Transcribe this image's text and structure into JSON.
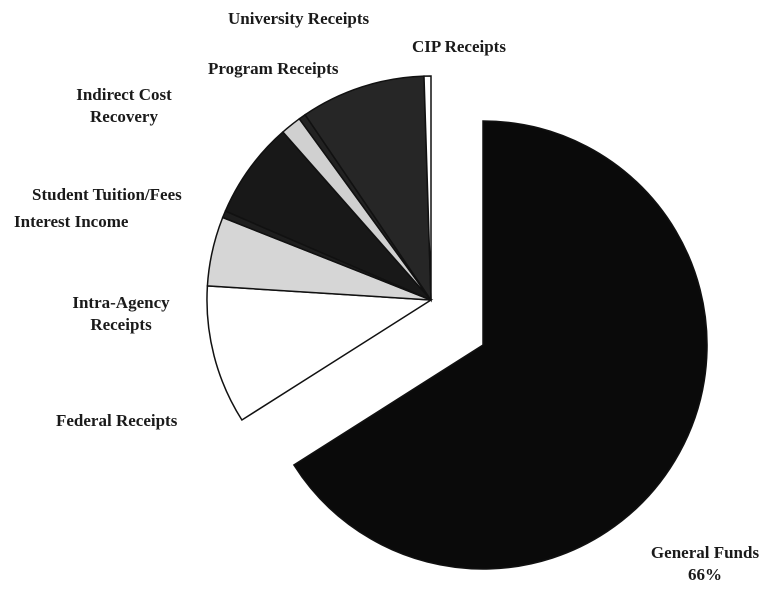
{
  "chart_data": {
    "type": "pie",
    "title": "",
    "slices": [
      {
        "label": "General Funds",
        "percent_label": "66%",
        "value": 66,
        "fill": "#0a0a0a"
      },
      {
        "label": "Federal Receipts",
        "value": 10,
        "fill": "#ffffff"
      },
      {
        "label": "Intra-Agency Receipts",
        "value": 5,
        "fill": "#d6d6d6"
      },
      {
        "label": "Interest Income",
        "value": 0.5,
        "fill": "#1e1e1e"
      },
      {
        "label": "Student Tuition/Fees",
        "value": 7,
        "fill": "#181818"
      },
      {
        "label": "Indirect Cost Recovery",
        "value": 1.5,
        "fill": "#d0d0d0"
      },
      {
        "label": "Program Receipts",
        "value": 0.5,
        "fill": "#222222"
      },
      {
        "label": "University Receipts",
        "value": 9,
        "fill": "#262626"
      },
      {
        "label": "CIP Receipts",
        "value": 0.5,
        "fill": "#ffffff"
      }
    ],
    "exploded_slice": "General Funds"
  },
  "labels": {
    "university": "University Receipts",
    "cip": "CIP Receipts",
    "program": "Program Receipts",
    "indirect_1": "Indirect Cost",
    "indirect_2": "Recovery",
    "student": "Student Tuition/Fees",
    "interest": "Interest Income",
    "intra_1": "Intra-Agency",
    "intra_2": "Receipts",
    "federal": "Federal Receipts",
    "general": "General Funds",
    "general_pct": "66%"
  }
}
